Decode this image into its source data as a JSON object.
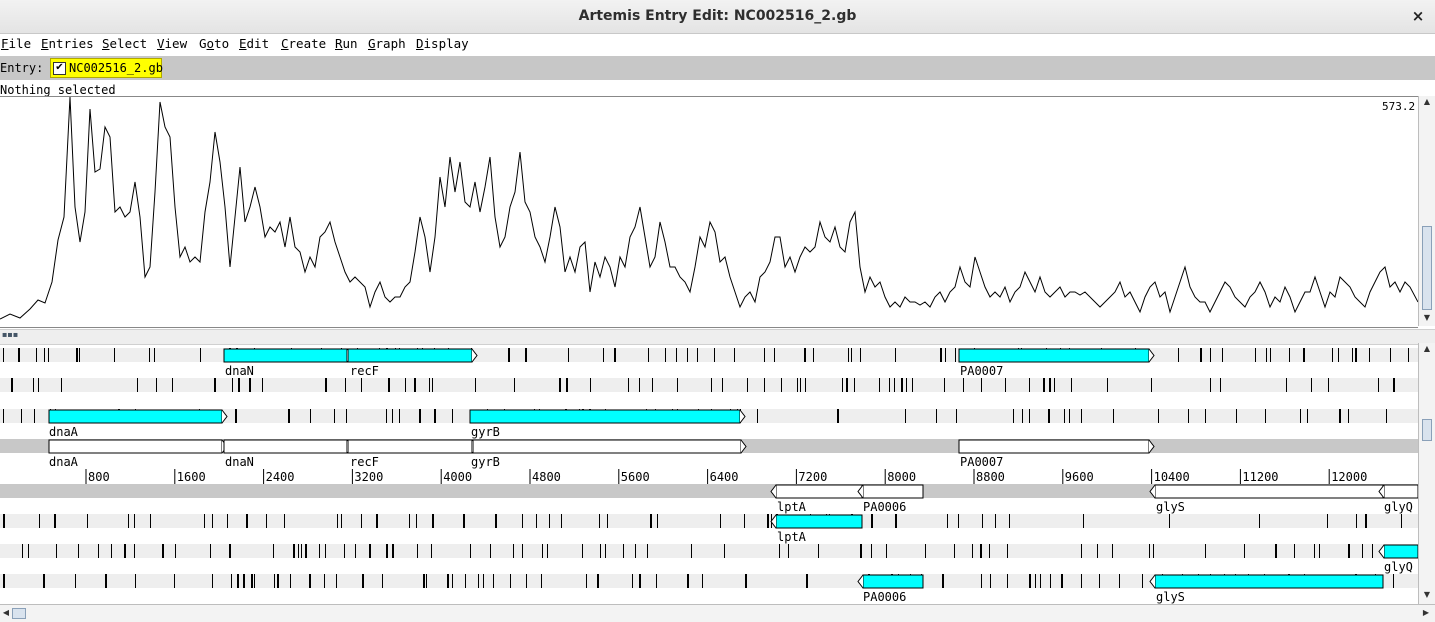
{
  "window": {
    "title": "Artemis Entry Edit: NC002516_2.gb",
    "close_icon": "×"
  },
  "menu": {
    "items": [
      {
        "label": "File",
        "key": "F"
      },
      {
        "label": "Entries",
        "key": "E"
      },
      {
        "label": "Select",
        "key": "S"
      },
      {
        "label": "View",
        "key": "V"
      },
      {
        "label": "Goto",
        "key": "o"
      },
      {
        "label": "Edit",
        "key": "E"
      },
      {
        "label": "Create",
        "key": "C"
      },
      {
        "label": "Run",
        "key": "R"
      },
      {
        "label": "Graph",
        "key": "G"
      },
      {
        "label": "Display",
        "key": "D"
      }
    ]
  },
  "entry_bar": {
    "label": "Entry:",
    "entry_name": "NC002516_2.gb",
    "checked": "✔"
  },
  "status": {
    "text": "Nothing selected"
  },
  "graph": {
    "max_value": "573.2",
    "max_display": "573.2"
  },
  "ruler": {
    "ticks": [
      "800",
      "1600",
      "2400",
      "3200",
      "4000",
      "4800",
      "5600",
      "6400",
      "7200",
      "8000",
      "8800",
      "9600",
      "10400",
      "11200",
      "12000"
    ]
  },
  "features": {
    "forward_labels_frame1": [
      "dnaN",
      "recF",
      "PA0007"
    ],
    "forward_labels_frame3": [
      "dnaA",
      "gyrB"
    ],
    "forward_strand_labels": [
      "dnaA",
      "dnaN",
      "recF",
      "gyrB",
      "PA0007"
    ],
    "reverse_strand_labels": [
      "lptA",
      "PA0006",
      "glyS",
      "glyQ"
    ],
    "reverse_frame1_labels": [
      "lptA"
    ],
    "reverse_frame2_labels": [
      "glyQ"
    ],
    "reverse_frame3_labels": [
      "PA0006",
      "glyS"
    ]
  },
  "colors": {
    "feature_fill": "#00ffff",
    "entry_highlight": "#ffff00",
    "track_bg": "#eeeeee",
    "strand_bg": "#c8c8c8"
  }
}
